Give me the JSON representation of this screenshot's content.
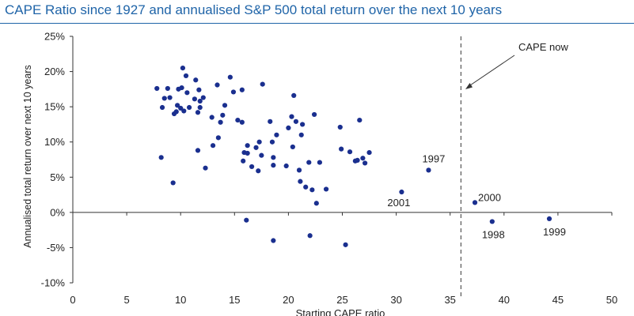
{
  "chart_data": {
    "type": "scatter",
    "title": "CAPE Ratio since 1927 and annualised S&P 500 total return over the next 10 years",
    "xlabel": "Starting CAPE ratio",
    "ylabel": "Annualised total return over next 10 years",
    "xlim": [
      0,
      50
    ],
    "ylim": [
      -10,
      25
    ],
    "x_ticks": [
      "0",
      "5",
      "10",
      "15",
      "20",
      "25",
      "30",
      "35",
      "40",
      "45",
      "50"
    ],
    "y_ticks": [
      "25%",
      "20%",
      "15%",
      "10%",
      "5%",
      "0%",
      "-5%",
      "-10%"
    ],
    "grid": false,
    "marker_color": "#1a2f8f",
    "cape_now": {
      "label": "CAPE now",
      "x": 36
    },
    "labeled_points": [
      {
        "label": "1997",
        "x": 33.0,
        "y": 6.0
      },
      {
        "label": "1998",
        "x": 38.9,
        "y": -1.3
      },
      {
        "label": "1999",
        "x": 44.2,
        "y": -0.9
      },
      {
        "label": "2000",
        "x": 37.3,
        "y": 1.4
      },
      {
        "label": "2001",
        "x": 30.5,
        "y": 2.9
      }
    ],
    "points": [
      [
        7.8,
        17.6
      ],
      [
        8.2,
        7.8
      ],
      [
        8.3,
        14.9
      ],
      [
        8.5,
        16.2
      ],
      [
        8.8,
        17.6
      ],
      [
        9.0,
        16.3
      ],
      [
        9.3,
        4.2
      ],
      [
        9.4,
        14.0
      ],
      [
        9.6,
        14.3
      ],
      [
        9.7,
        15.2
      ],
      [
        9.8,
        17.5
      ],
      [
        10.0,
        14.8
      ],
      [
        10.1,
        17.7
      ],
      [
        10.2,
        20.5
      ],
      [
        10.3,
        14.4
      ],
      [
        10.5,
        19.4
      ],
      [
        10.6,
        17.0
      ],
      [
        10.8,
        14.9
      ],
      [
        11.3,
        16.1
      ],
      [
        11.4,
        18.8
      ],
      [
        11.6,
        14.2
      ],
      [
        11.6,
        8.8
      ],
      [
        11.7,
        17.4
      ],
      [
        11.8,
        14.9
      ],
      [
        11.8,
        15.8
      ],
      [
        12.1,
        16.3
      ],
      [
        12.3,
        6.3
      ],
      [
        12.9,
        13.5
      ],
      [
        13.0,
        9.5
      ],
      [
        13.4,
        18.1
      ],
      [
        13.5,
        10.6
      ],
      [
        13.7,
        12.8
      ],
      [
        13.9,
        13.8
      ],
      [
        14.1,
        15.2
      ],
      [
        14.6,
        19.2
      ],
      [
        14.9,
        17.1
      ],
      [
        15.3,
        13.1
      ],
      [
        15.7,
        17.4
      ],
      [
        15.7,
        12.8
      ],
      [
        15.8,
        7.3
      ],
      [
        15.9,
        8.5
      ],
      [
        16.1,
        -1.1
      ],
      [
        16.2,
        8.4
      ],
      [
        16.2,
        9.5
      ],
      [
        16.6,
        6.5
      ],
      [
        17.0,
        9.2
      ],
      [
        17.2,
        5.9
      ],
      [
        17.3,
        10.0
      ],
      [
        17.5,
        8.1
      ],
      [
        17.6,
        18.2
      ],
      [
        18.3,
        12.9
      ],
      [
        18.5,
        10.0
      ],
      [
        18.6,
        7.8
      ],
      [
        18.6,
        6.7
      ],
      [
        18.6,
        -4.0
      ],
      [
        18.9,
        11.0
      ],
      [
        19.8,
        6.6
      ],
      [
        20.0,
        12.0
      ],
      [
        20.3,
        13.6
      ],
      [
        20.4,
        9.3
      ],
      [
        20.5,
        16.6
      ],
      [
        20.7,
        12.9
      ],
      [
        21.0,
        6.0
      ],
      [
        21.1,
        4.4
      ],
      [
        21.2,
        11.0
      ],
      [
        21.3,
        12.5
      ],
      [
        21.6,
        3.6
      ],
      [
        21.9,
        7.1
      ],
      [
        22.0,
        -3.3
      ],
      [
        22.2,
        3.2
      ],
      [
        22.4,
        13.9
      ],
      [
        22.6,
        1.3
      ],
      [
        22.9,
        7.1
      ],
      [
        23.5,
        3.3
      ],
      [
        24.8,
        12.1
      ],
      [
        24.9,
        9.0
      ],
      [
        25.3,
        -4.6
      ],
      [
        25.7,
        8.6
      ],
      [
        26.2,
        7.3
      ],
      [
        26.4,
        7.4
      ],
      [
        26.6,
        13.1
      ],
      [
        26.9,
        7.7
      ],
      [
        27.1,
        7.0
      ],
      [
        27.5,
        8.5
      ]
    ]
  }
}
